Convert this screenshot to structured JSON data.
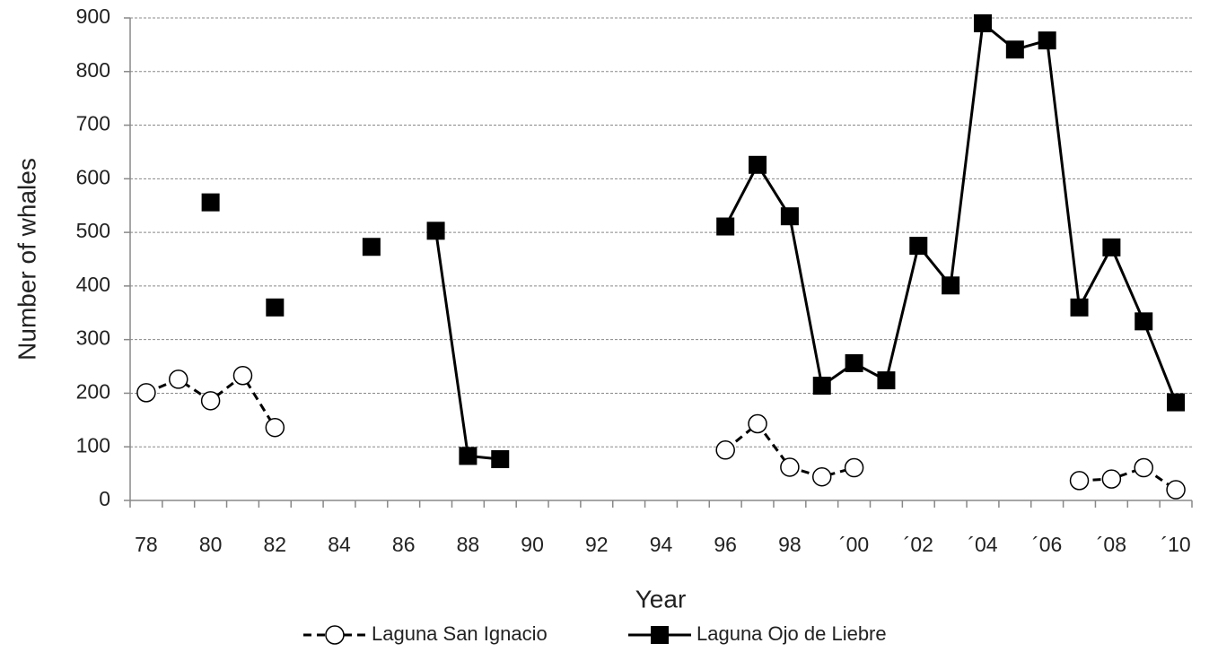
{
  "chart_data": {
    "type": "line",
    "x_label": "Year",
    "y_label": "Number of whales",
    "x": [
      1978,
      1979,
      1980,
      1981,
      1982,
      1983,
      1984,
      1985,
      1986,
      1987,
      1988,
      1989,
      1990,
      1991,
      1992,
      1993,
      1994,
      1995,
      1996,
      1997,
      1998,
      1999,
      2000,
      2001,
      2002,
      2003,
      2004,
      2005,
      2006,
      2007,
      2008,
      2009,
      2010
    ],
    "series": [
      {
        "name": "Laguna San Ignacio",
        "color": "#000000",
        "marker": "circle",
        "line_style": "dashed",
        "values": [
          201,
          226,
          186,
          233,
          136,
          null,
          null,
          null,
          null,
          null,
          null,
          null,
          null,
          null,
          null,
          null,
          null,
          null,
          94,
          143,
          62,
          44,
          61,
          null,
          null,
          null,
          null,
          null,
          null,
          37,
          40,
          61,
          20
        ]
      },
      {
        "name": "Laguna Ojo de Liebre",
        "color": "#000000",
        "marker": "square",
        "line_style": "solid",
        "values": [
          null,
          null,
          556,
          null,
          360,
          null,
          null,
          473,
          null,
          503,
          83,
          77,
          null,
          null,
          null,
          null,
          null,
          null,
          511,
          626,
          530,
          214,
          256,
          224,
          475,
          401,
          890,
          841,
          858,
          360,
          472,
          334,
          183
        ]
      }
    ],
    "xlim": [
      1977.5,
      2010.5
    ],
    "xticks": [
      {
        "value": 1978,
        "label": "78"
      },
      {
        "value": 1980,
        "label": "80"
      },
      {
        "value": 1982,
        "label": "82"
      },
      {
        "value": 1984,
        "label": "84"
      },
      {
        "value": 1986,
        "label": "86"
      },
      {
        "value": 1988,
        "label": "88"
      },
      {
        "value": 1990,
        "label": "90"
      },
      {
        "value": 1992,
        "label": "92"
      },
      {
        "value": 1994,
        "label": "94"
      },
      {
        "value": 1996,
        "label": "96"
      },
      {
        "value": 1998,
        "label": "98"
      },
      {
        "value": 2000,
        "label": "´00"
      },
      {
        "value": 2002,
        "label": "´02"
      },
      {
        "value": 2004,
        "label": "´04"
      },
      {
        "value": 2006,
        "label": "´06"
      },
      {
        "value": 2008,
        "label": "´08"
      },
      {
        "value": 2010,
        "label": "´10"
      }
    ],
    "ylim": [
      0,
      900
    ],
    "yticks": [
      0,
      100,
      200,
      300,
      400,
      500,
      600,
      700,
      800,
      900
    ],
    "grid": true,
    "legend_position": "bottom"
  }
}
